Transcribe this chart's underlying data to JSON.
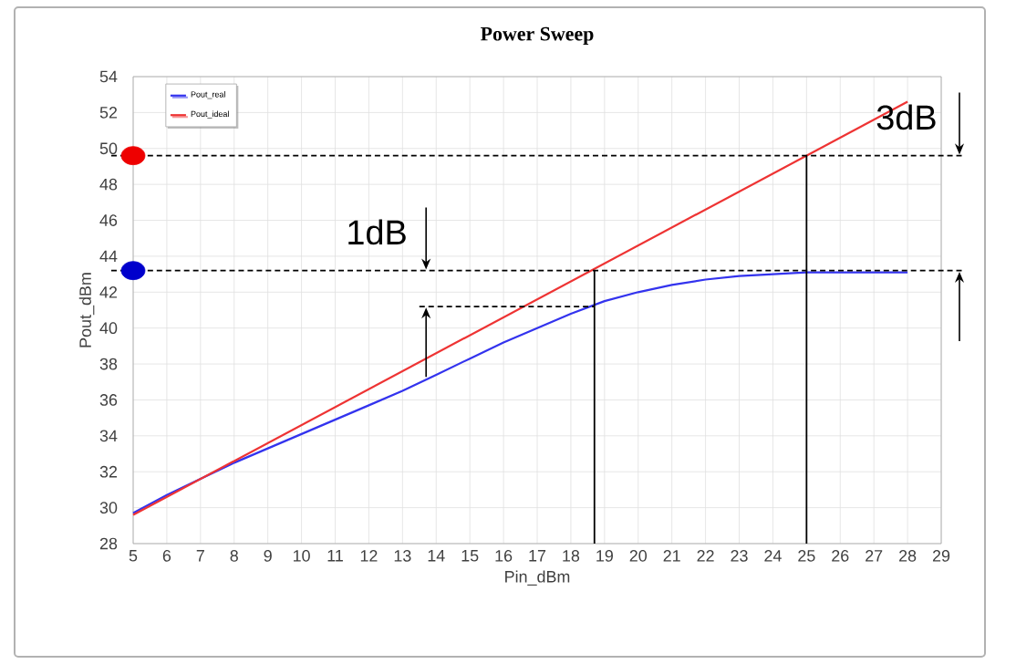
{
  "chart_data": {
    "type": "line",
    "title": "Power Sweep",
    "xlabel": "Pin_dBm",
    "ylabel": "Pout_dBm",
    "xlim": [
      5,
      29
    ],
    "xticks": [
      5,
      6,
      7,
      8,
      9,
      10,
      11,
      12,
      13,
      14,
      15,
      16,
      17,
      18,
      19,
      20,
      21,
      22,
      23,
      24,
      25,
      26,
      27,
      28,
      29
    ],
    "ylim": [
      28,
      54
    ],
    "yticks": [
      28,
      30,
      32,
      34,
      36,
      38,
      40,
      42,
      44,
      46,
      48,
      50,
      52,
      54
    ],
    "grid": true,
    "legend": "top left",
    "series": [
      {
        "name": "Pout_real",
        "color": "#3333ee",
        "x": [
          5,
          6,
          7,
          8,
          9,
          10,
          11,
          12,
          13,
          14,
          15,
          16,
          17,
          18,
          19,
          20,
          21,
          22,
          23,
          24,
          25,
          26,
          27,
          28
        ],
        "values": [
          29.7,
          30.7,
          31.6,
          32.5,
          33.3,
          34.1,
          34.9,
          35.7,
          36.5,
          37.4,
          38.3,
          39.2,
          40.0,
          40.8,
          41.5,
          42.0,
          42.4,
          42.7,
          42.9,
          43.0,
          43.1,
          43.1,
          43.1,
          43.1
        ]
      },
      {
        "name": "Pout_ideal",
        "color": "#ee3333",
        "x": [
          5,
          28
        ],
        "values": [
          29.6,
          52.6
        ]
      },
      {
        "type": "line",
        "color": "#000000",
        "line_style": "dashed",
        "x": [
          13.5,
          18.7
        ],
        "values": [
          41.2,
          41.2
        ]
      },
      {
        "type": "line",
        "color": "#000000",
        "line_style": "solid",
        "x": [
          18.7,
          18.7
        ],
        "values": [
          43.2,
          28
        ]
      },
      {
        "type": "line",
        "color": "#000000",
        "line_style": "solid",
        "x": [
          25,
          25
        ],
        "values": [
          49.6,
          28
        ]
      },
      {
        "type": "scatter",
        "marker": "circle",
        "x": [
          5,
          5
        ],
        "values": [
          49.6,
          43.2
        ],
        "colors": [
          "#ee0000",
          "#0000cc"
        ]
      }
    ],
    "ref_lines": [
      {
        "axis": "y",
        "value": 49.6,
        "line_style": "dashed",
        "color": "#000000"
      },
      {
        "axis": "y",
        "value": 43.2,
        "line_style": "dashed",
        "color": "#000000"
      }
    ],
    "annotations": [
      {
        "text": "1dB",
        "x": 13.7,
        "y": 43.2
      },
      {
        "text": "3dB",
        "x": 29,
        "y": 49.6
      }
    ]
  }
}
